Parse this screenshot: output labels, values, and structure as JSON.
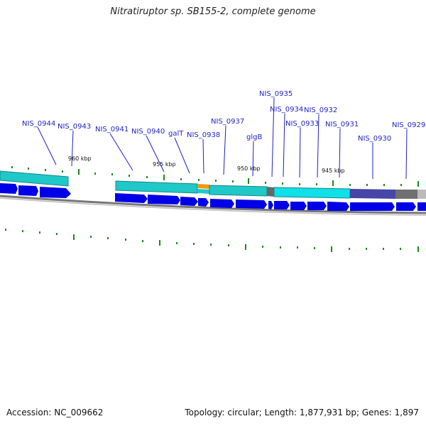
{
  "title": "Nitratiruptor sp. SB155-2, complete genome",
  "footer": {
    "accession": "Accession: NC_009662",
    "summary": "Topology: circular; Length: 1,877,931 bp; Genes: 1,897"
  },
  "colors": {
    "gene_label": "#1f1fc8",
    "strand_arrow": "#0000e6",
    "cds_band": "#20d8d8",
    "cds_band_dark": "#109898",
    "highlight": "#f39800",
    "tick": "#1a8a1a",
    "backbone": "#888888"
  },
  "kbp_marks": [
    "960 kbp",
    "955 kbp",
    "950 kbp",
    "945 kbp"
  ],
  "gene_labels": [
    "NIS_0944",
    "NIS_0943",
    "NIS_0941",
    "NIS_0940",
    "galT",
    "NIS_0938",
    "NIS_0937",
    "glgB",
    "NIS_0935",
    "NIS_0934",
    "NIS_0933",
    "NIS_0932",
    "NIS_0931",
    "NIS_0930",
    "NIS_0929"
  ]
}
